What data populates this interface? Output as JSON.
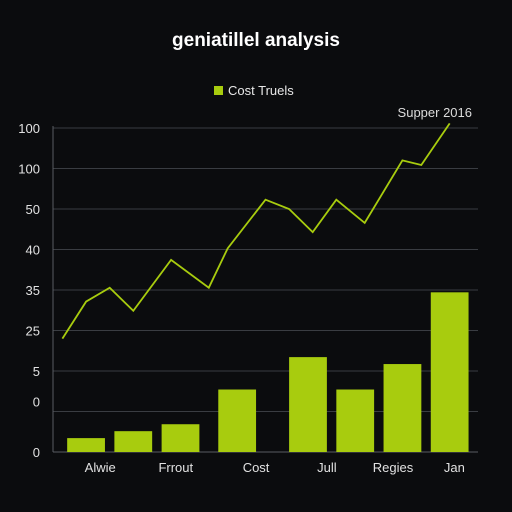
{
  "title": "geniatillel analysis",
  "legend": {
    "label": "Cost Truels"
  },
  "corner_note": "Supper 2016",
  "colors": {
    "accent": "#a8cc0e",
    "grid": "#3a3d42",
    "axis": "#5a5d63",
    "background": "#0b0c0e"
  },
  "chart_data": {
    "type": "bar",
    "title": "geniatillel analysis",
    "xlabel": "",
    "ylabel": "",
    "grid": true,
    "legend_position": "top-center",
    "y_tick_labels": [
      "0",
      "0",
      "5",
      "25",
      "35",
      "40",
      "50",
      "100",
      "100"
    ],
    "categories": [
      "Alwie",
      "Frrout",
      "Cost",
      "Jull",
      "Regies",
      "Jan"
    ],
    "bars": [
      {
        "x": 0.5,
        "value": 0.3
      },
      {
        "x": 1.5,
        "value": 0.45
      },
      {
        "x": 2.5,
        "value": 0.6
      },
      {
        "x": 3.7,
        "value": 1.35
      },
      {
        "x": 5.2,
        "value": 2.05
      },
      {
        "x": 6.2,
        "value": 1.35
      },
      {
        "x": 7.2,
        "value": 1.9
      },
      {
        "x": 8.2,
        "value": 3.45
      }
    ],
    "series": [
      {
        "name": "Cost Truels",
        "type": "line",
        "points": [
          [
            0,
            2.45
          ],
          [
            0.5,
            3.25
          ],
          [
            1.0,
            3.55
          ],
          [
            1.5,
            3.05
          ],
          [
            2.3,
            4.15
          ],
          [
            3.1,
            3.55
          ],
          [
            3.5,
            4.4
          ],
          [
            4.3,
            5.45
          ],
          [
            4.8,
            5.25
          ],
          [
            5.3,
            4.75
          ],
          [
            5.8,
            5.45
          ],
          [
            6.4,
            4.95
          ],
          [
            7.2,
            6.3
          ],
          [
            7.6,
            6.2
          ],
          [
            8.2,
            7.1
          ]
        ]
      }
    ],
    "xlim": [
      -0.2,
      8.8
    ],
    "ylim": [
      0,
      7
    ]
  }
}
